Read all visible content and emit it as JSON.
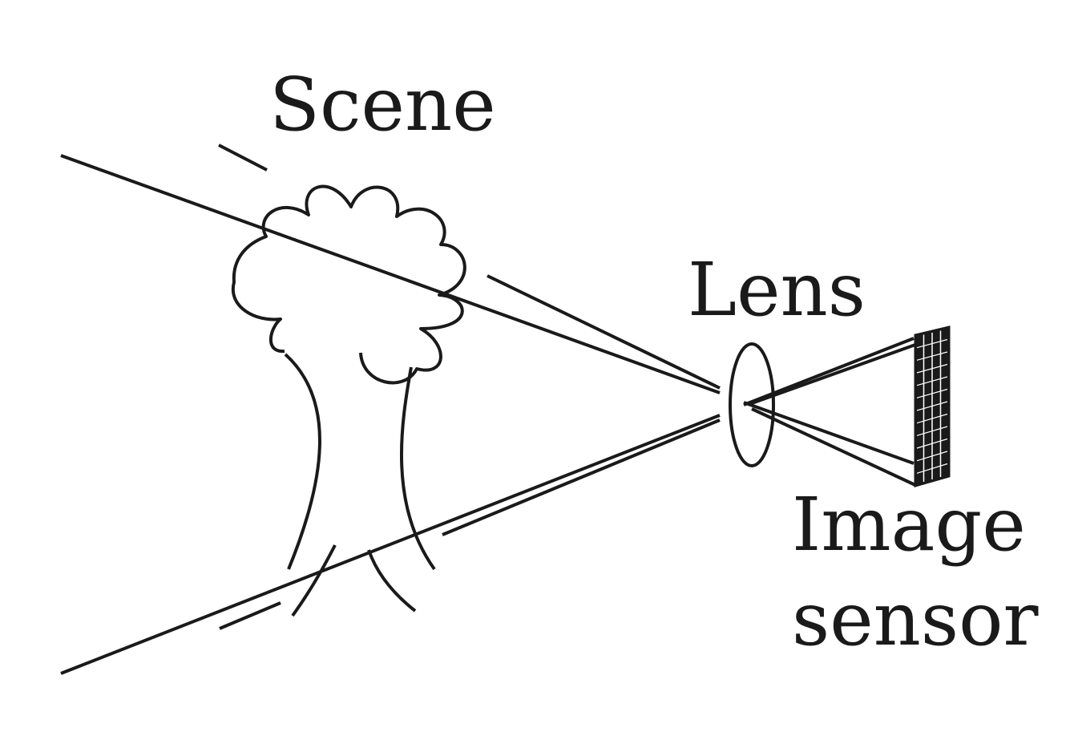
{
  "labels": {
    "scene": "Scene",
    "lens": "Lens",
    "sensor_line1": "Image",
    "sensor_line2": "sensor"
  },
  "colors": {
    "ink": "#1a1a1a",
    "background": "#ffffff"
  }
}
